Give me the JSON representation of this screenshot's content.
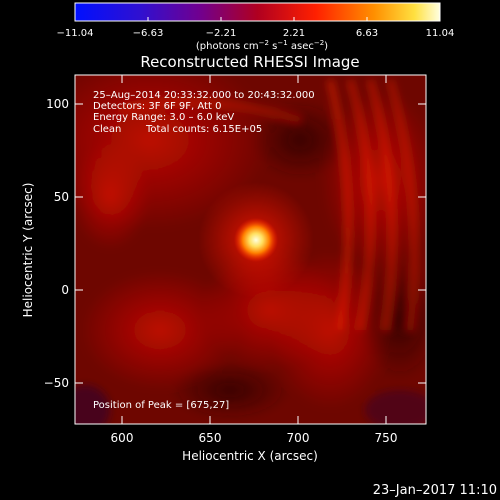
{
  "colorbar": {
    "tick_labels": [
      "−11.04",
      "−6.63",
      "−2.21",
      "2.21",
      "6.63",
      "11.04"
    ],
    "units_label": "(photons cm",
    "units_exp1": "−2",
    "units_mid1": " s",
    "units_exp2": "−1",
    "units_mid2": " asec",
    "units_exp3": "−2",
    "units_tail": ")"
  },
  "title": "Reconstructed RHESSI Image",
  "annotations": {
    "time_range": "25–Aug–2014 20:33:32.000 to 20:43:32.000",
    "detectors": "Detectors: 3F 6F 9F, Att 0",
    "energy": "Energy Range: 3.0 – 6.0 keV",
    "algorithm": "Clean",
    "counts": "Total counts: 6.15E+05",
    "peak": "Position of Peak = [675,27]"
  },
  "axes": {
    "xlabel": "Heliocentric X (arcsec)",
    "ylabel": "Heliocentric Y (arcsec)",
    "x_ticks": [
      "600",
      "650",
      "700",
      "750"
    ],
    "y_ticks": [
      "100",
      "50",
      "0",
      "−50"
    ]
  },
  "footer": {
    "timestamp": "23–Jan–2017 11:10"
  },
  "colors": {
    "background": "#000000",
    "text": "#ffffff"
  },
  "image_data": {
    "x_range": [
      575,
      767
    ],
    "y_range": [
      -73,
      121
    ],
    "peak": [
      675,
      27
    ]
  }
}
